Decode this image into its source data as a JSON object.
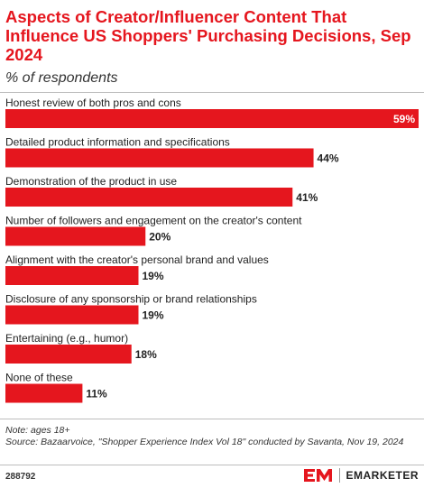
{
  "title": "Aspects of Creator/Influencer Content That Influence US Shoppers' Purchasing Decisions, Sep 2024",
  "subtitle": "% of respondents",
  "notes": {
    "note": "Note: ages 18+",
    "source": "Source: Bazaarvoice, \"Shopper Experience Index Vol 18\" conducted by Savanta, Nov 19, 2024"
  },
  "footer": {
    "chart_id": "288792",
    "brand": "EMARKETER"
  },
  "colors": {
    "bar": "#e5161e",
    "title": "#e5161e",
    "text": "#222222"
  },
  "chart_data": {
    "type": "bar",
    "orientation": "horizontal",
    "categories": [
      "Honest review of both pros and cons",
      "Detailed product information and specifications",
      "Demonstration of the product in use",
      "Number of followers and engagement on the creator's content",
      "Alignment with the creator's personal brand and values",
      "Disclosure of any sponsorship or brand relationships",
      "Entertaining (e.g., humor)",
      "None of these"
    ],
    "values": [
      59,
      44,
      41,
      20,
      19,
      19,
      18,
      11
    ],
    "value_labels": [
      "59%",
      "44%",
      "41%",
      "20%",
      "19%",
      "19%",
      "18%",
      "11%"
    ],
    "unit": "%",
    "xlim": [
      0,
      59
    ],
    "grid": false,
    "legend": "none"
  }
}
